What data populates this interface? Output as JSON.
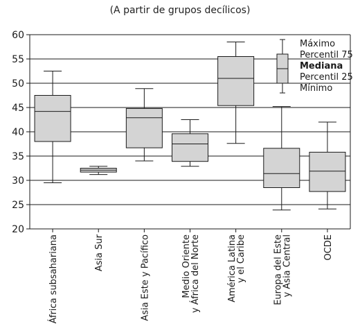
{
  "subtitle": "(A partir de grupos decílicos)",
  "chart_data": {
    "type": "boxplot",
    "title": "",
    "xlabel": "",
    "ylabel": "",
    "ylim": [
      20,
      60
    ],
    "yticks": [
      20,
      25,
      30,
      35,
      40,
      45,
      50,
      55,
      60
    ],
    "grid": "horizontal",
    "legend_position": "top-right",
    "colors": {
      "box_fill": "#d4d4d4",
      "stroke": "#1a1a1a",
      "grid": "#1a1a1a"
    },
    "legend": {
      "items": [
        {
          "label": "Máximo",
          "bold": false
        },
        {
          "label": "Percentil 75",
          "bold": false
        },
        {
          "label": "Mediana",
          "bold": true
        },
        {
          "label": "Percentil 25",
          "bold": false
        },
        {
          "label": "Mínimo",
          "bold": false
        }
      ],
      "sample": {
        "min": 48,
        "q1": 50,
        "median": 53,
        "q3": 56,
        "max": 59
      }
    },
    "series": [
      {
        "category": [
          "África subsahariana"
        ],
        "min": 29.5,
        "q1": 38.0,
        "median": 44.2,
        "q3": 47.5,
        "max": 52.5
      },
      {
        "category": [
          "Asia Sur"
        ],
        "min": 31.2,
        "q1": 31.7,
        "median": 32.1,
        "q3": 32.5,
        "max": 32.9
      },
      {
        "category": [
          "Asia Este y Pacífico"
        ],
        "min": 34.0,
        "q1": 36.7,
        "median": 42.9,
        "q3": 44.8,
        "max": 48.9
      },
      {
        "category": [
          "Medio Oriente",
          "y África del Norte"
        ],
        "min": 32.9,
        "q1": 33.9,
        "median": 37.5,
        "q3": 39.6,
        "max": 42.5
      },
      {
        "category": [
          "América Latina",
          "y el Caribe"
        ],
        "min": 37.6,
        "q1": 45.4,
        "median": 51.0,
        "q3": 55.5,
        "max": 58.5
      },
      {
        "category": [
          "Europa del Este",
          "y Asia Central"
        ],
        "min": 23.9,
        "q1": 28.5,
        "median": 31.4,
        "q3": 36.6,
        "max": 45.2
      },
      {
        "category": [
          "OCDE"
        ],
        "min": 24.1,
        "q1": 27.7,
        "median": 31.9,
        "q3": 35.8,
        "max": 42.0
      }
    ]
  }
}
